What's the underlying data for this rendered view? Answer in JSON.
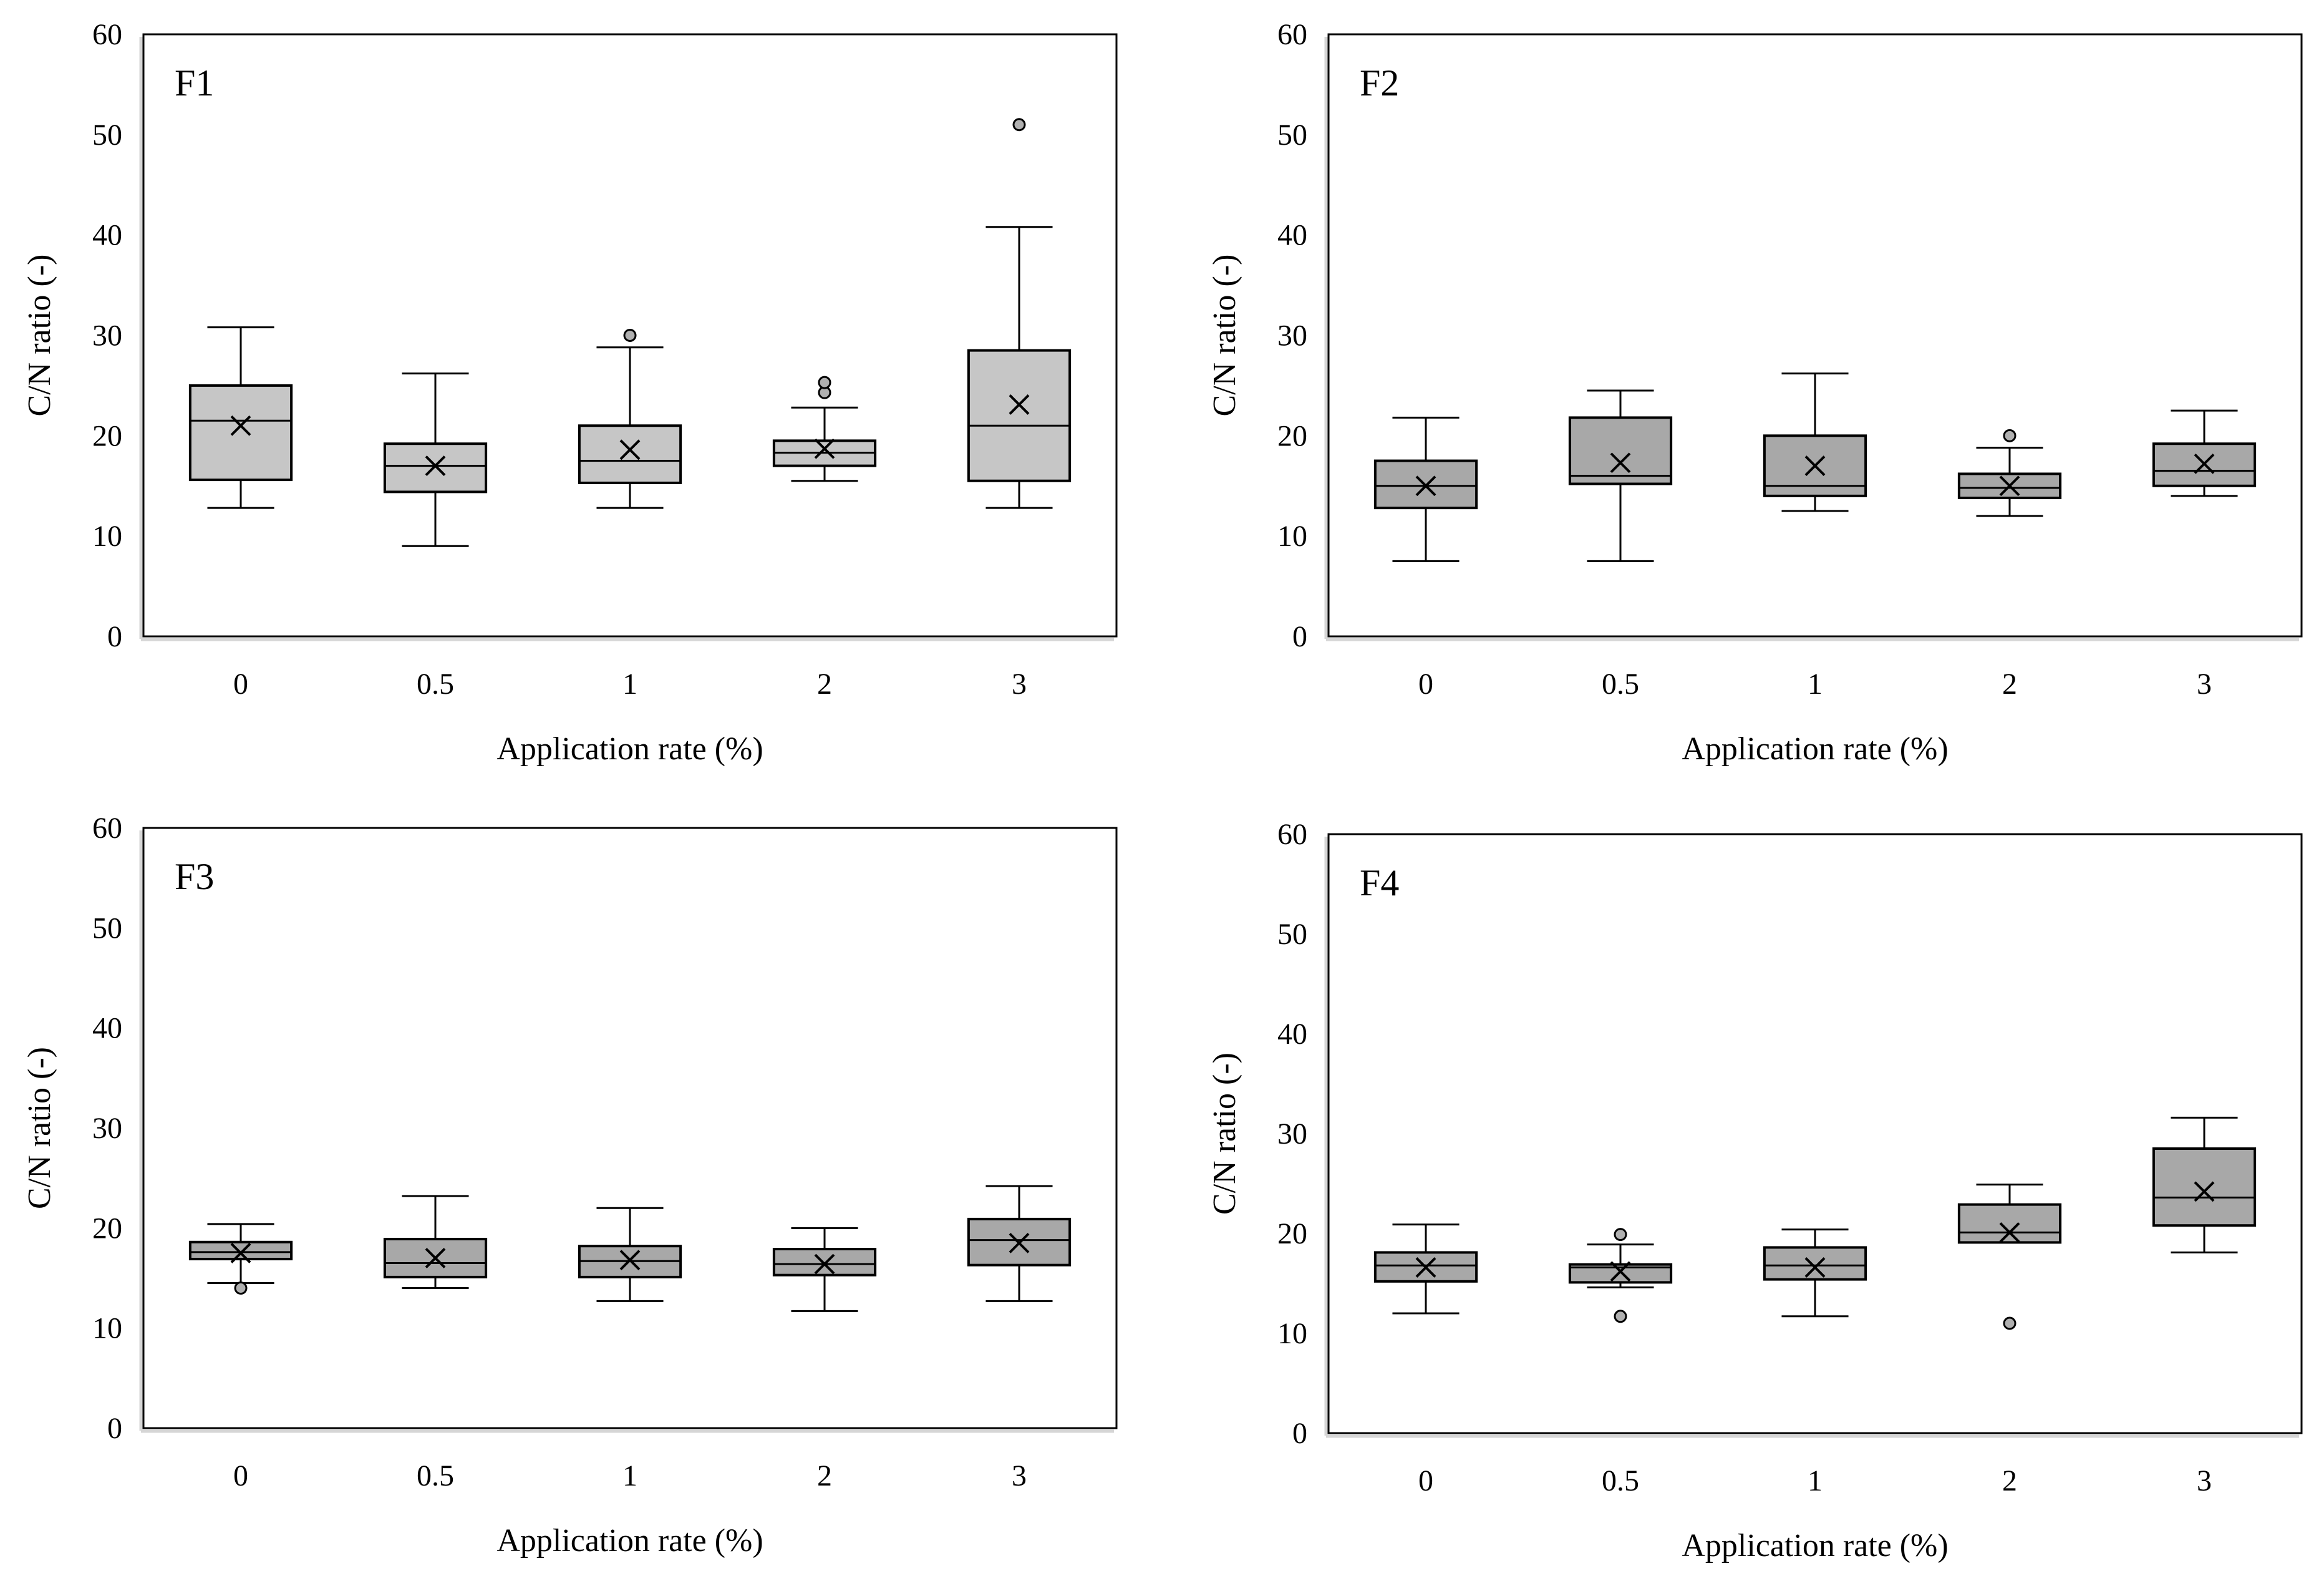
{
  "chart_data": [
    {
      "type": "boxplot",
      "title": "F1",
      "xlabel": "Application rate (%)",
      "ylabel": "C/N ratio (-)",
      "ylim": [
        0,
        60
      ],
      "yticks": [
        0,
        10,
        20,
        30,
        40,
        50,
        60
      ],
      "categories": [
        "0",
        "0.5",
        "1",
        "2",
        "3"
      ],
      "fill": "#c6c6c6",
      "boxes": [
        {
          "min": 12.8,
          "q1": 15.6,
          "median": 21.5,
          "q3": 25.0,
          "max": 30.8,
          "mean": 21.0,
          "outliers": []
        },
        {
          "min": 9.0,
          "q1": 14.4,
          "median": 17.0,
          "q3": 19.2,
          "max": 26.2,
          "mean": 17.0,
          "outliers": []
        },
        {
          "min": 12.8,
          "q1": 15.3,
          "median": 17.5,
          "q3": 21.0,
          "max": 28.8,
          "mean": 18.6,
          "outliers": [
            30.0
          ]
        },
        {
          "min": 15.5,
          "q1": 17.0,
          "median": 18.3,
          "q3": 19.5,
          "max": 22.8,
          "mean": 18.7,
          "outliers": [
            24.3,
            25.3
          ]
        },
        {
          "min": 12.8,
          "q1": 15.5,
          "median": 21.0,
          "q3": 28.5,
          "max": 40.8,
          "mean": 23.1,
          "outliers": [
            51.0
          ]
        }
      ]
    },
    {
      "type": "boxplot",
      "title": "F2",
      "xlabel": "Application rate (%)",
      "ylabel": "C/N ratio (-)",
      "ylim": [
        0,
        60
      ],
      "yticks": [
        0,
        10,
        20,
        30,
        40,
        50,
        60
      ],
      "categories": [
        "0",
        "0.5",
        "1",
        "2",
        "3"
      ],
      "fill": "#a8a8a8",
      "boxes": [
        {
          "min": 7.5,
          "q1": 12.8,
          "median": 15.0,
          "q3": 17.5,
          "max": 21.8,
          "mean": 15.0,
          "outliers": []
        },
        {
          "min": 7.5,
          "q1": 15.2,
          "median": 16.0,
          "q3": 21.8,
          "max": 24.5,
          "mean": 17.3,
          "outliers": []
        },
        {
          "min": 12.5,
          "q1": 14.0,
          "median": 15.0,
          "q3": 20.0,
          "max": 26.2,
          "mean": 17.0,
          "outliers": []
        },
        {
          "min": 12.0,
          "q1": 13.8,
          "median": 14.8,
          "q3": 16.2,
          "max": 18.8,
          "mean": 15.0,
          "outliers": [
            20.0
          ]
        },
        {
          "min": 14.0,
          "q1": 15.0,
          "median": 16.5,
          "q3": 19.2,
          "max": 22.5,
          "mean": 17.2,
          "outliers": []
        }
      ]
    },
    {
      "type": "boxplot",
      "title": "F3",
      "xlabel": "Application rate (%)",
      "ylabel": "C/N ratio (-)",
      "ylim": [
        0,
        60
      ],
      "yticks": [
        0,
        10,
        20,
        30,
        40,
        50,
        60
      ],
      "categories": [
        "0",
        "0.5",
        "1",
        "2",
        "3"
      ],
      "fill": "#a8a8a8",
      "boxes": [
        {
          "min": 14.5,
          "q1": 16.9,
          "median": 17.6,
          "q3": 18.6,
          "max": 20.4,
          "mean": 17.5,
          "outliers": [
            14.0
          ]
        },
        {
          "min": 14.0,
          "q1": 15.1,
          "median": 16.5,
          "q3": 18.9,
          "max": 23.2,
          "mean": 17.0,
          "outliers": []
        },
        {
          "min": 12.7,
          "q1": 15.1,
          "median": 16.7,
          "q3": 18.2,
          "max": 22.0,
          "mean": 16.8,
          "outliers": []
        },
        {
          "min": 11.7,
          "q1": 15.3,
          "median": 16.4,
          "q3": 17.9,
          "max": 20.0,
          "mean": 16.4,
          "outliers": []
        },
        {
          "min": 12.7,
          "q1": 16.3,
          "median": 18.8,
          "q3": 20.9,
          "max": 24.2,
          "mean": 18.5,
          "outliers": []
        }
      ]
    },
    {
      "type": "boxplot",
      "title": "F4",
      "xlabel": "Application rate (%)",
      "ylabel": "C/N ratio (-)",
      "ylim": [
        0,
        60
      ],
      "yticks": [
        0,
        10,
        20,
        30,
        40,
        50,
        60
      ],
      "categories": [
        "0",
        "0.5",
        "1",
        "2",
        "3"
      ],
      "fill": "#a8a8a8",
      "boxes": [
        {
          "min": 12.0,
          "q1": 15.2,
          "median": 16.8,
          "q3": 18.1,
          "max": 20.9,
          "mean": 16.6,
          "outliers": []
        },
        {
          "min": 14.6,
          "q1": 15.1,
          "median": 16.6,
          "q3": 16.9,
          "max": 18.9,
          "mean": 16.2,
          "outliers": [
            19.9,
            11.7
          ]
        },
        {
          "min": 11.7,
          "q1": 15.4,
          "median": 16.8,
          "q3": 18.6,
          "max": 20.4,
          "mean": 16.6,
          "outliers": []
        },
        {
          "min": 19.1,
          "q1": 19.1,
          "median": 20.1,
          "q3": 22.9,
          "max": 24.9,
          "mean": 20.1,
          "outliers": [
            11.0
          ]
        },
        {
          "min": 18.1,
          "q1": 20.8,
          "median": 23.6,
          "q3": 28.5,
          "max": 31.6,
          "mean": 24.2,
          "outliers": []
        }
      ]
    }
  ]
}
